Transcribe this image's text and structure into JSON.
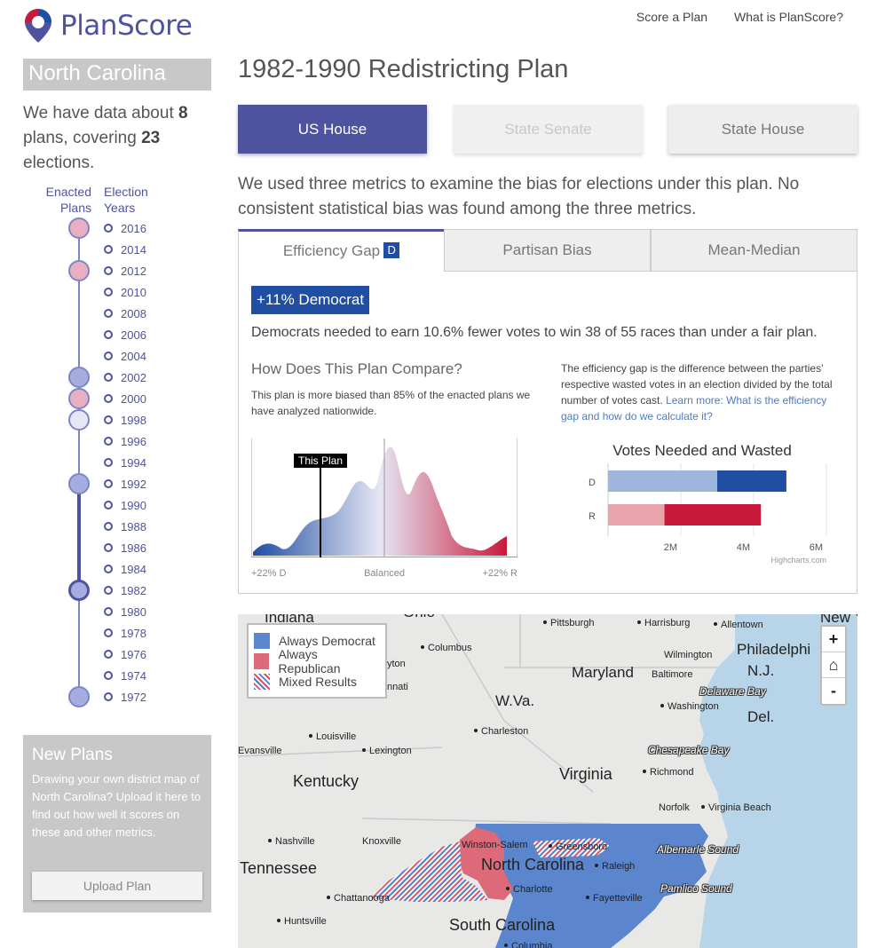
{
  "brand": {
    "name": "PlanScore"
  },
  "nav": {
    "score_plan": "Score a Plan",
    "what_is": "What is PlanScore?"
  },
  "sidebar": {
    "state": "North Carolina",
    "summary_pre": "We have data about ",
    "plans_count": "8",
    "summary_mid": " plans, covering ",
    "elections_count": "23",
    "summary_post": " elections.",
    "enacted_label_1": "Enacted",
    "enacted_label_2": "Plans",
    "years_label_1": "Election",
    "years_label_2": "Years",
    "years": [
      "2016",
      "2014",
      "2012",
      "2010",
      "2008",
      "2006",
      "2004",
      "2002",
      "2000",
      "1998",
      "1996",
      "1994",
      "1992",
      "1990",
      "1988",
      "1986",
      "1984",
      "1982",
      "1980",
      "1978",
      "1976",
      "1974",
      "1972"
    ],
    "new_plans": {
      "title": "New Plans",
      "text": "Drawing your own district map of North Carolina? Upload it here to find out how well it scores on these and other metrics.",
      "button": "Upload Plan"
    }
  },
  "plan": {
    "title": "1982-1990 Redistricting Plan",
    "chambers": {
      "us_house": "US House",
      "state_senate": "State Senate",
      "state_house": "State House"
    },
    "intro": "We used three metrics to examine the bias for elections under this plan. No consistent statistical bias was found among the three metrics."
  },
  "tabs": {
    "efficiency_gap": "Efficiency Gap",
    "grade": "D",
    "partisan_bias": "Partisan Bias",
    "mean_median": "Mean-Median"
  },
  "metric": {
    "badge": "+11% Democrat",
    "sentence": "Democrats needed to earn 10.6% fewer votes to win 38 of 55 races than under a fair plan.",
    "compare_title": "How Does This Plan Compare?",
    "compare_text": "This plan is more biased than 85% of the enacted plans we have analyzed nationwide.",
    "def_text": "The efficiency gap is the difference between the parties’ respective wasted votes in an election divided by the total number of votes cast. ",
    "def_link": "Learn more: What is the efficiency gap and how do we calculate it?",
    "dist_marker": "This Plan",
    "dist_left": "+22% D",
    "dist_center": "Balanced",
    "dist_right": "+22% R"
  },
  "chart_data": {
    "type": "bar",
    "title": "Votes Needed and Wasted",
    "categories": [
      "D",
      "R"
    ],
    "series": [
      {
        "values": [
          3.0,
          1.55
        ],
        "color_d": "#9db6de",
        "color_r": "#e8a3ab"
      },
      {
        "values": [
          1.9,
          2.65
        ],
        "color_d": "#1f4ea3",
        "color_r": "#c8193a"
      }
    ],
    "x_ticks": [
      "2M",
      "4M",
      "6M"
    ],
    "xlim": [
      0,
      6
    ],
    "credit": "Highcharts.com"
  },
  "map": {
    "legend": {
      "dem": "Always Democrat",
      "rep": "Always Republican",
      "mixed": "Mixed Results"
    },
    "zoom_in": "+",
    "home": "⌂",
    "zoom_out": "-",
    "labels": {
      "indiana": "Indiana",
      "ohio": "Ohio",
      "pittsburgh": "Pittsburgh",
      "harrisburg": "Harrisburg",
      "allentown": "Allentown",
      "newyork": "New Yor",
      "columbus": "Columbus",
      "dayton": "yton",
      "cinci": "nnati",
      "philadelphia": "Philadelphi",
      "nj": "N.J.",
      "wilmington": "Wilmington",
      "maryland": "Maryland",
      "baltimore": "Baltimore",
      "delbay": "Delaware Bay",
      "wva": "W.Va.",
      "washington": "Washington",
      "del": "Del.",
      "louisville": "Louisville",
      "charleston": "Charleston",
      "evansville": "Evansville",
      "lexington": "Lexington",
      "chesbay": "Chesapeake Bay",
      "kentucky": "Kentucky",
      "virginia": "Virginia",
      "richmond": "Richmond",
      "norfolk": "Norfolk",
      "vabeach": "Virginia Beach",
      "nashville": "Nashville",
      "knoxville": "Knoxville",
      "winston": "Winston-Salem",
      "greensboro": "Greensboro",
      "albemarle": "Albemarle Sound",
      "tennessee": "Tennessee",
      "nc": "North Carolina",
      "raleigh": "Raleigh",
      "charlotte": "Charlotte",
      "pamlico": "Pamlico Sound",
      "chattanooga": "Chattanooga",
      "fayetteville": "Fayetteville",
      "huntsville": "Huntsville",
      "sc": "South Carolina",
      "columbia": "Columbia"
    }
  },
  "colors": {
    "brand": "#4e539f",
    "dem": "#1f4ea3",
    "rep": "#c8193a",
    "map_dem": "#5b85cd",
    "map_rep": "#dd6a79"
  }
}
